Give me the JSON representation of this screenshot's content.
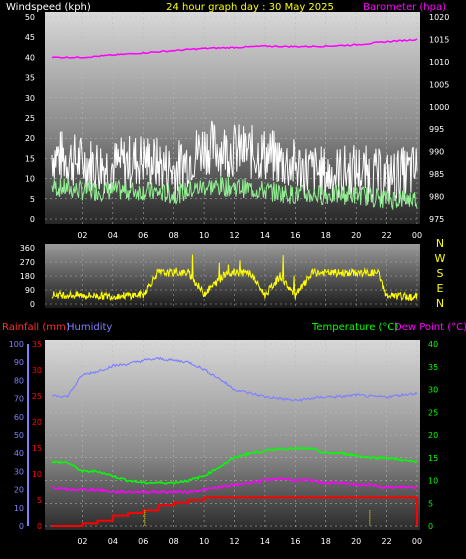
{
  "header": {
    "left_title": "Windspeed (kph)",
    "center_title": "24 hour graph day : 30 May 2025",
    "right_title": "Barometer (hpa)"
  },
  "colors": {
    "background": "#000000",
    "wind_gust": "#ffffff",
    "wind_avg": "#90ee90",
    "barometer": "#ff00ff",
    "wind_dir": "#ffff00",
    "rainfall": "#ff0000",
    "humidity": "#8080ff",
    "temperature": "#00ff00",
    "dewpoint": "#ff00ff",
    "axis_left_top": "#ffffff",
    "axis_right_top": "#ffffff",
    "axis_dir": "#ffffff",
    "axis_humidity": "#8080ff",
    "axis_rain": "#ff0000",
    "axis_temp": "#00ff00"
  },
  "x_ticks": [
    "02",
    "04",
    "06",
    "08",
    "10",
    "12",
    "14",
    "16",
    "18",
    "20",
    "22",
    "00"
  ],
  "chart_data": [
    {
      "type": "line",
      "title": "24 hour graph day : 30 May 2025",
      "x_range": [
        0,
        24
      ],
      "y_left": {
        "label": "Windspeed (kph)",
        "range": [
          0,
          50
        ],
        "ticks": [
          0,
          5,
          10,
          15,
          20,
          25,
          30,
          35,
          40,
          45,
          50
        ]
      },
      "y_right": {
        "label": "Barometer (hpa)",
        "range": [
          975,
          1020
        ],
        "ticks": [
          975,
          980,
          985,
          990,
          995,
          1000,
          1005,
          1010,
          1015,
          1020
        ]
      },
      "series": [
        {
          "name": "Windspeed (kph)",
          "axis": "left",
          "x": [
            0,
            2,
            4,
            6,
            8,
            10,
            12,
            14,
            16,
            18,
            20,
            22,
            24
          ],
          "y": [
            16,
            14,
            13,
            15,
            12,
            18,
            17,
            16,
            13,
            11,
            12,
            10,
            12
          ]
        },
        {
          "name": "Wind average",
          "axis": "left",
          "x": [
            0,
            2,
            4,
            6,
            8,
            10,
            12,
            14,
            16,
            18,
            20,
            22,
            24
          ],
          "y": [
            8,
            7,
            7,
            7,
            6,
            8,
            8,
            7,
            6,
            6,
            6,
            5,
            5
          ]
        },
        {
          "name": "Barometer (hpa)",
          "axis": "right",
          "x": [
            0,
            2,
            4,
            6,
            8,
            10,
            12,
            14,
            16,
            18,
            20,
            22,
            24
          ],
          "y": [
            1011,
            1011,
            1011.5,
            1012,
            1012.5,
            1013,
            1013.2,
            1013.5,
            1013.4,
            1013.5,
            1013.8,
            1014.5,
            1015
          ]
        }
      ]
    },
    {
      "type": "scatter",
      "y_range": [
        0,
        360
      ],
      "y_ticks": [
        0,
        90,
        180,
        270,
        360
      ],
      "direction_labels": [
        "N",
        "W",
        "S",
        "E",
        "N"
      ],
      "series": [
        {
          "name": "Wind direction",
          "x": [
            0,
            2,
            4,
            6,
            7.8,
            8.2,
            10,
            11.8,
            12.2,
            14,
            15,
            16,
            18,
            20,
            21,
            22,
            24
          ],
          "y": [
            60,
            55,
            50,
            60,
            330,
            300,
            65,
            230,
            320,
            55,
            180,
            50,
            320,
            340,
            330,
            50,
            45
          ]
        }
      ]
    },
    {
      "type": "line",
      "y_humidity": {
        "label": "Humidity",
        "range": [
          0,
          100
        ],
        "ticks": [
          0,
          10,
          20,
          30,
          40,
          50,
          60,
          70,
          80,
          90,
          100
        ]
      },
      "y_rain": {
        "label": "Rainfall (mm)",
        "range": [
          0,
          35
        ],
        "ticks": [
          0,
          5,
          10,
          15,
          20,
          25,
          30,
          35
        ]
      },
      "y_temp": {
        "label": "Temperature (°C)",
        "secondary_label": "Dew Point (°C)",
        "range": [
          0,
          40
        ],
        "ticks": [
          0,
          5,
          10,
          15,
          20,
          25,
          30,
          35,
          40
        ]
      },
      "series": [
        {
          "name": "Humidity",
          "axis": "humidity",
          "x": [
            0,
            1,
            2,
            3,
            4,
            5,
            6,
            7,
            8,
            9,
            10,
            11,
            12,
            13,
            14,
            15,
            16,
            17,
            18,
            19,
            20,
            21,
            22,
            23,
            24
          ],
          "y": [
            72,
            71,
            83,
            85,
            88,
            89,
            91,
            92,
            91,
            90,
            86,
            81,
            75,
            73,
            71,
            70,
            69,
            70,
            71,
            71,
            72,
            71,
            71,
            72,
            73
          ]
        },
        {
          "name": "Temperature (°C)",
          "axis": "temp",
          "x": [
            0,
            1,
            2,
            3,
            4,
            5,
            6,
            7,
            8,
            9,
            10,
            11,
            12,
            13,
            14,
            15,
            16,
            17,
            18,
            19,
            20,
            21,
            22,
            23,
            24
          ],
          "y": [
            14,
            14,
            12,
            12,
            11,
            10,
            9.5,
            9.5,
            9.5,
            10,
            11,
            13,
            15,
            16,
            16.5,
            17,
            17,
            17,
            16,
            16,
            15.5,
            15,
            15,
            14.5,
            14
          ]
        },
        {
          "name": "Dew Point (°C)",
          "axis": "temp",
          "x": [
            0,
            1,
            2,
            3,
            4,
            5,
            6,
            7,
            8,
            9,
            10,
            11,
            12,
            13,
            14,
            15,
            16,
            17,
            18,
            19,
            20,
            21,
            22,
            23,
            24
          ],
          "y": [
            8.5,
            8,
            8,
            8,
            7.5,
            7.5,
            7.5,
            7.5,
            7.5,
            7.5,
            8,
            8.5,
            9,
            9.5,
            10,
            10.5,
            10,
            10,
            9.5,
            9.5,
            9,
            9,
            8.5,
            8.5,
            8.5
          ]
        },
        {
          "name": "Rainfall (mm)",
          "axis": "rain",
          "x": [
            0,
            1,
            2,
            3,
            4,
            5,
            6,
            7,
            8,
            9,
            10,
            11,
            12,
            13,
            14,
            15,
            16,
            17,
            18,
            19,
            20,
            21,
            22,
            23,
            24
          ],
          "y": [
            0,
            0,
            0.5,
            1,
            2,
            2.5,
            3,
            4,
            4.5,
            5,
            5.5,
            5.5,
            5.5,
            5.5,
            5.5,
            5.5,
            5.5,
            5.5,
            5.5,
            5.5,
            5.5,
            5.5,
            5.5,
            5.5,
            5.5
          ]
        }
      ]
    }
  ],
  "panel3_labels": {
    "rain": "Rainfall (mm)",
    "humidity": "Humidity",
    "temperature": "Temperature (°C)",
    "dewpoint": "Dew Point (°C)"
  }
}
